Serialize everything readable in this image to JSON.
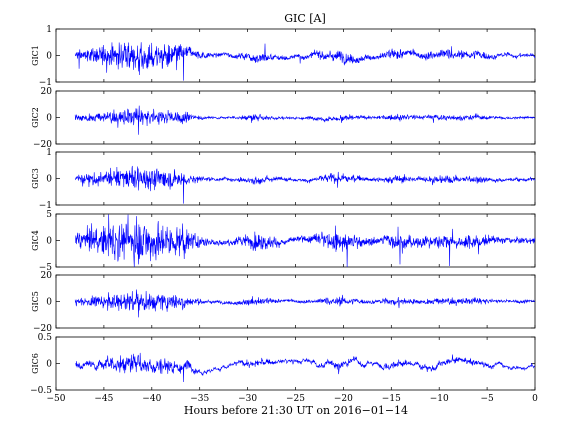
{
  "chart_data": {
    "type": "line",
    "title": "GIC [A]",
    "xlabel": "Hours before  21:30 UT on 2016−01−14",
    "xlim": [
      -50,
      0
    ],
    "x_ticks": [
      "−50",
      "−45",
      "−40",
      "−35",
      "−30",
      "−25",
      "−20",
      "−15",
      "−10",
      "−5",
      "0"
    ],
    "x_tick_values": [
      -50,
      -45,
      -40,
      -35,
      -30,
      -25,
      -20,
      -15,
      -10,
      -5,
      0
    ],
    "data_x_range": [
      -48,
      0
    ],
    "series_color": "#0000ff",
    "panels": [
      {
        "name": "GIC1",
        "ylabel": "GIC1",
        "ylim": [
          -1,
          1
        ],
        "y_ticks": [
          "1",
          "0",
          "−1"
        ],
        "y_tick_values": [
          1,
          0,
          -1
        ],
        "noise": 0.11,
        "slow": 0.07,
        "spikes": [
          {
            "x": -47.6,
            "y": -0.5
          },
          {
            "x": -44.7,
            "y": -0.65
          },
          {
            "x": -41.4,
            "y": -0.6
          },
          {
            "x": -37.4,
            "y": -0.55
          },
          {
            "x": -36.7,
            "y": -0.95
          },
          {
            "x": -39.5,
            "y": 0.35
          },
          {
            "x": -28.2,
            "y": 0.45
          },
          {
            "x": -8.7,
            "y": 0.35
          },
          {
            "x": -24.5,
            "y": -0.3
          }
        ]
      },
      {
        "name": "GIC2",
        "ylabel": "GIC2",
        "ylim": [
          -20,
          20
        ],
        "y_ticks": [
          "20",
          "0",
          "−20"
        ],
        "y_tick_values": [
          20,
          0,
          -20
        ],
        "noise": 1.3,
        "slow": 0.5,
        "spikes": [
          {
            "x": -41.4,
            "y": -13
          },
          {
            "x": -41.3,
            "y": 9
          },
          {
            "x": -44.6,
            "y": 4
          },
          {
            "x": -42.8,
            "y": 4
          },
          {
            "x": -36.8,
            "y": -5
          },
          {
            "x": -29.6,
            "y": -4
          },
          {
            "x": -20.2,
            "y": -4
          },
          {
            "x": -14.1,
            "y": -3
          },
          {
            "x": -10.6,
            "y": -4
          }
        ]
      },
      {
        "name": "GIC3",
        "ylabel": "GIC3",
        "ylim": [
          -1,
          1
        ],
        "y_ticks": [
          "1",
          "0",
          "−1"
        ],
        "y_tick_values": [
          1,
          0,
          -1
        ],
        "noise": 0.09,
        "slow": 0.04,
        "spikes": [
          {
            "x": -36.7,
            "y": -0.95
          },
          {
            "x": -41.4,
            "y": -0.45
          },
          {
            "x": -44.3,
            "y": 0.4
          },
          {
            "x": -47.2,
            "y": -0.3
          },
          {
            "x": -36.9,
            "y": 0.2
          },
          {
            "x": -20.6,
            "y": -0.35
          },
          {
            "x": -10.7,
            "y": -0.25
          }
        ]
      },
      {
        "name": "GIC4",
        "ylabel": "GIC4",
        "ylim": [
          -5,
          5
        ],
        "y_ticks": [
          "5",
          "0",
          "−5"
        ],
        "y_tick_values": [
          5,
          0,
          -5
        ],
        "noise": 0.85,
        "slow": 0.3,
        "spikes": [
          {
            "x": -44.5,
            "y": 4.9
          },
          {
            "x": -41.6,
            "y": 4.6
          },
          {
            "x": -41.4,
            "y": -4.5
          },
          {
            "x": -45.1,
            "y": -2.2
          },
          {
            "x": -36.8,
            "y": 3.2
          },
          {
            "x": -36.6,
            "y": -3.5
          },
          {
            "x": -19.6,
            "y": -5
          },
          {
            "x": -14.1,
            "y": -4.5
          },
          {
            "x": -14.3,
            "y": 2.6
          },
          {
            "x": -8.9,
            "y": -4.8
          },
          {
            "x": -8.6,
            "y": 2.2
          },
          {
            "x": -5.9,
            "y": -2.6
          },
          {
            "x": -20.8,
            "y": 2.8
          }
        ]
      },
      {
        "name": "GIC5",
        "ylabel": "GIC5",
        "ylim": [
          -20,
          20
        ],
        "y_ticks": [
          "20",
          "0",
          "−20"
        ],
        "y_tick_values": [
          20,
          0,
          -20
        ],
        "noise": 1.6,
        "slow": 0.5,
        "spikes": [
          {
            "x": -41.4,
            "y": -12
          },
          {
            "x": -41.6,
            "y": 9
          },
          {
            "x": -44.5,
            "y": 7
          },
          {
            "x": -43.2,
            "y": 5
          },
          {
            "x": -36.8,
            "y": -6
          },
          {
            "x": -20.1,
            "y": 5
          },
          {
            "x": -14.2,
            "y": -5
          },
          {
            "x": -29.5,
            "y": 4
          }
        ]
      },
      {
        "name": "GIC6",
        "ylabel": "GIC6",
        "ylim": [
          -0.5,
          0.5
        ],
        "y_ticks": [
          "0.5",
          "0",
          "−0.5"
        ],
        "y_tick_values": [
          0.5,
          0,
          -0.5
        ],
        "noise": 0.035,
        "slow": 0.07,
        "spikes": [
          {
            "x": -36.7,
            "y": -0.35
          },
          {
            "x": -41.2,
            "y": 0.2
          },
          {
            "x": -44.6,
            "y": 0.15
          },
          {
            "x": -8.6,
            "y": 0.17
          },
          {
            "x": -20.5,
            "y": -0.2
          }
        ]
      }
    ]
  }
}
